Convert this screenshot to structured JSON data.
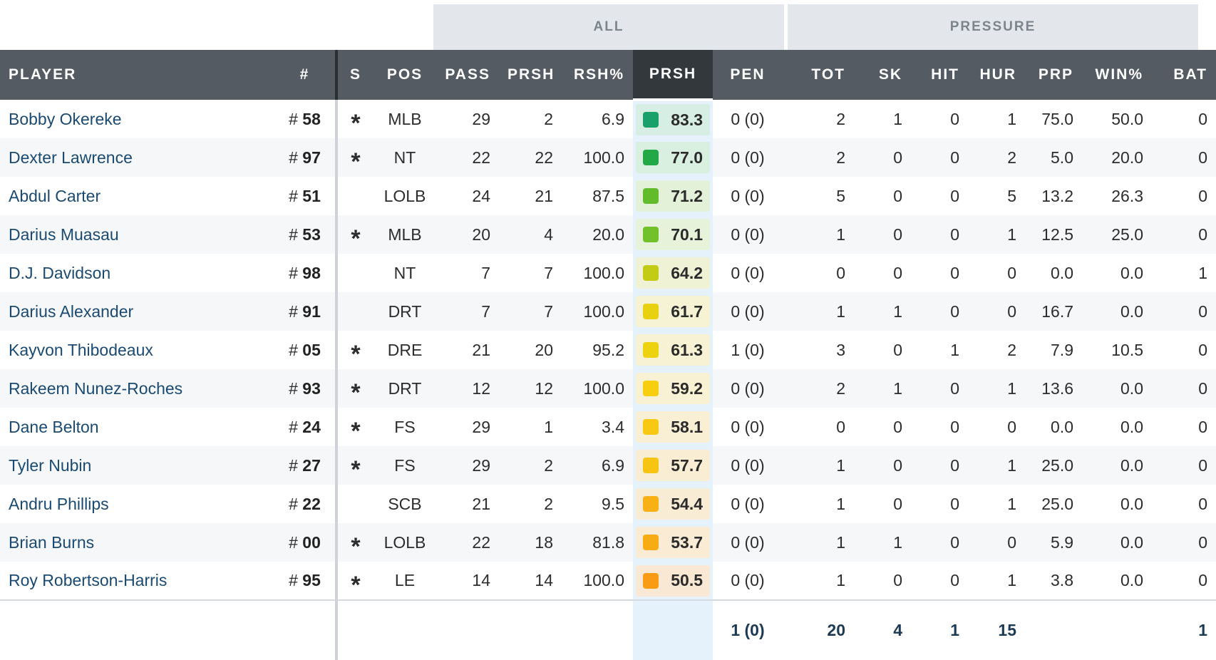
{
  "group_headers": {
    "all": "ALL",
    "pressure": "PRESSURE"
  },
  "columns": {
    "player": "PLAYER",
    "num": "#",
    "s": "S",
    "pos": "POS",
    "pass": "PASS",
    "prsh": "PRSH",
    "rsh_pct": "RSH%",
    "prsh_grade": "PRSH",
    "pen": "PEN",
    "tot": "TOT",
    "sk": "SK",
    "hit": "HIT",
    "hur": "HUR",
    "prp": "PRP",
    "win_pct": "WIN%",
    "bat": "BAT"
  },
  "number_prefix": "#",
  "starter_symbol": "*",
  "players": [
    {
      "name": "Bobby Okereke",
      "number": "58",
      "starter": true,
      "pos": "MLB",
      "pass": "29",
      "prsh": "2",
      "rsh_pct": "6.9",
      "grade": "83.3",
      "grade_color": "#1aa06a",
      "grade_bg": "#d7eee4",
      "pen": "0 (0)",
      "tot": "2",
      "sk": "1",
      "hit": "0",
      "hur": "1",
      "prp": "75.0",
      "win_pct": "50.0",
      "bat": "0"
    },
    {
      "name": "Dexter Lawrence",
      "number": "97",
      "starter": true,
      "pos": "NT",
      "pass": "22",
      "prsh": "22",
      "rsh_pct": "100.0",
      "grade": "77.0",
      "grade_color": "#23a848",
      "grade_bg": "#d9efdf",
      "pen": "0 (0)",
      "tot": "2",
      "sk": "0",
      "hit": "0",
      "hur": "2",
      "prp": "5.0",
      "win_pct": "20.0",
      "bat": "0"
    },
    {
      "name": "Abdul Carter",
      "number": "51",
      "starter": false,
      "pos": "LOLB",
      "pass": "24",
      "prsh": "21",
      "rsh_pct": "87.5",
      "grade": "71.2",
      "grade_color": "#62bb2a",
      "grade_bg": "#e3f1d8",
      "pen": "0 (0)",
      "tot": "5",
      "sk": "0",
      "hit": "0",
      "hur": "5",
      "prp": "13.2",
      "win_pct": "26.3",
      "bat": "0"
    },
    {
      "name": "Darius Muasau",
      "number": "53",
      "starter": true,
      "pos": "MLB",
      "pass": "20",
      "prsh": "4",
      "rsh_pct": "20.0",
      "grade": "70.1",
      "grade_color": "#72c02a",
      "grade_bg": "#e6f2d9",
      "pen": "0 (0)",
      "tot": "1",
      "sk": "0",
      "hit": "0",
      "hur": "1",
      "prp": "12.5",
      "win_pct": "25.0",
      "bat": "0"
    },
    {
      "name": "D.J. Davidson",
      "number": "98",
      "starter": false,
      "pos": "NT",
      "pass": "7",
      "prsh": "7",
      "rsh_pct": "100.0",
      "grade": "64.2",
      "grade_color": "#c2cc14",
      "grade_bg": "#f0f2d6",
      "pen": "0 (0)",
      "tot": "0",
      "sk": "0",
      "hit": "0",
      "hur": "0",
      "prp": "0.0",
      "win_pct": "0.0",
      "bat": "1"
    },
    {
      "name": "Darius Alexander",
      "number": "91",
      "starter": false,
      "pos": "DRT",
      "pass": "7",
      "prsh": "7",
      "rsh_pct": "100.0",
      "grade": "61.7",
      "grade_color": "#e8d210",
      "grade_bg": "#f6f2d4",
      "pen": "0 (0)",
      "tot": "1",
      "sk": "1",
      "hit": "0",
      "hur": "0",
      "prp": "16.7",
      "win_pct": "0.0",
      "bat": "0"
    },
    {
      "name": "Kayvon Thibodeaux",
      "number": "05",
      "starter": true,
      "pos": "DRE",
      "pass": "21",
      "prsh": "20",
      "rsh_pct": "95.2",
      "grade": "61.3",
      "grade_color": "#edd30f",
      "grade_bg": "#f7f2d4",
      "pen": "1 (0)",
      "tot": "3",
      "sk": "0",
      "hit": "1",
      "hur": "2",
      "prp": "7.9",
      "win_pct": "10.5",
      "bat": "0"
    },
    {
      "name": "Rakeem Nunez-Roches",
      "number": "93",
      "starter": true,
      "pos": "DRT",
      "pass": "12",
      "prsh": "12",
      "rsh_pct": "100.0",
      "grade": "59.2",
      "grade_color": "#f7cf10",
      "grade_bg": "#f9f1d4",
      "pen": "0 (0)",
      "tot": "2",
      "sk": "1",
      "hit": "0",
      "hur": "1",
      "prp": "13.6",
      "win_pct": "0.0",
      "bat": "0"
    },
    {
      "name": "Dane Belton",
      "number": "24",
      "starter": true,
      "pos": "FS",
      "pass": "29",
      "prsh": "1",
      "rsh_pct": "3.4",
      "grade": "58.1",
      "grade_color": "#f8c812",
      "grade_bg": "#f9efd4",
      "pen": "0 (0)",
      "tot": "0",
      "sk": "0",
      "hit": "0",
      "hur": "0",
      "prp": "0.0",
      "win_pct": "0.0",
      "bat": "0"
    },
    {
      "name": "Tyler Nubin",
      "number": "27",
      "starter": true,
      "pos": "FS",
      "pass": "29",
      "prsh": "2",
      "rsh_pct": "6.9",
      "grade": "57.7",
      "grade_color": "#f8c412",
      "grade_bg": "#f9eed4",
      "pen": "0 (0)",
      "tot": "1",
      "sk": "0",
      "hit": "0",
      "hur": "1",
      "prp": "25.0",
      "win_pct": "0.0",
      "bat": "0"
    },
    {
      "name": "Andru Phillips",
      "number": "22",
      "starter": false,
      "pos": "SCB",
      "pass": "21",
      "prsh": "2",
      "rsh_pct": "9.5",
      "grade": "54.4",
      "grade_color": "#f8b014",
      "grade_bg": "#f9ecd4",
      "pen": "0 (0)",
      "tot": "1",
      "sk": "0",
      "hit": "0",
      "hur": "1",
      "prp": "25.0",
      "win_pct": "0.0",
      "bat": "0"
    },
    {
      "name": "Brian Burns",
      "number": "00",
      "starter": true,
      "pos": "LOLB",
      "pass": "22",
      "prsh": "18",
      "rsh_pct": "81.8",
      "grade": "53.7",
      "grade_color": "#f8ac14",
      "grade_bg": "#f9ebd4",
      "pen": "0 (0)",
      "tot": "1",
      "sk": "1",
      "hit": "0",
      "hur": "0",
      "prp": "5.9",
      "win_pct": "0.0",
      "bat": "0"
    },
    {
      "name": "Roy Robertson-Harris",
      "number": "95",
      "starter": true,
      "pos": "LE",
      "pass": "14",
      "prsh": "14",
      "rsh_pct": "100.0",
      "grade": "50.5",
      "grade_color": "#f89c16",
      "grade_bg": "#f9e8d4",
      "pen": "0 (0)",
      "tot": "1",
      "sk": "0",
      "hit": "0",
      "hur": "1",
      "prp": "3.8",
      "win_pct": "0.0",
      "bat": "0"
    }
  ],
  "totals": {
    "pen": "1 (0)",
    "tot": "20",
    "sk": "4",
    "hit": "1",
    "hur": "15",
    "bat": "1"
  },
  "colors": {
    "header_bg": "#545b62",
    "selected_header_bg": "#33383d",
    "grade_column_bg": "#e5f2fc",
    "player_link": "#1a4a72"
  }
}
